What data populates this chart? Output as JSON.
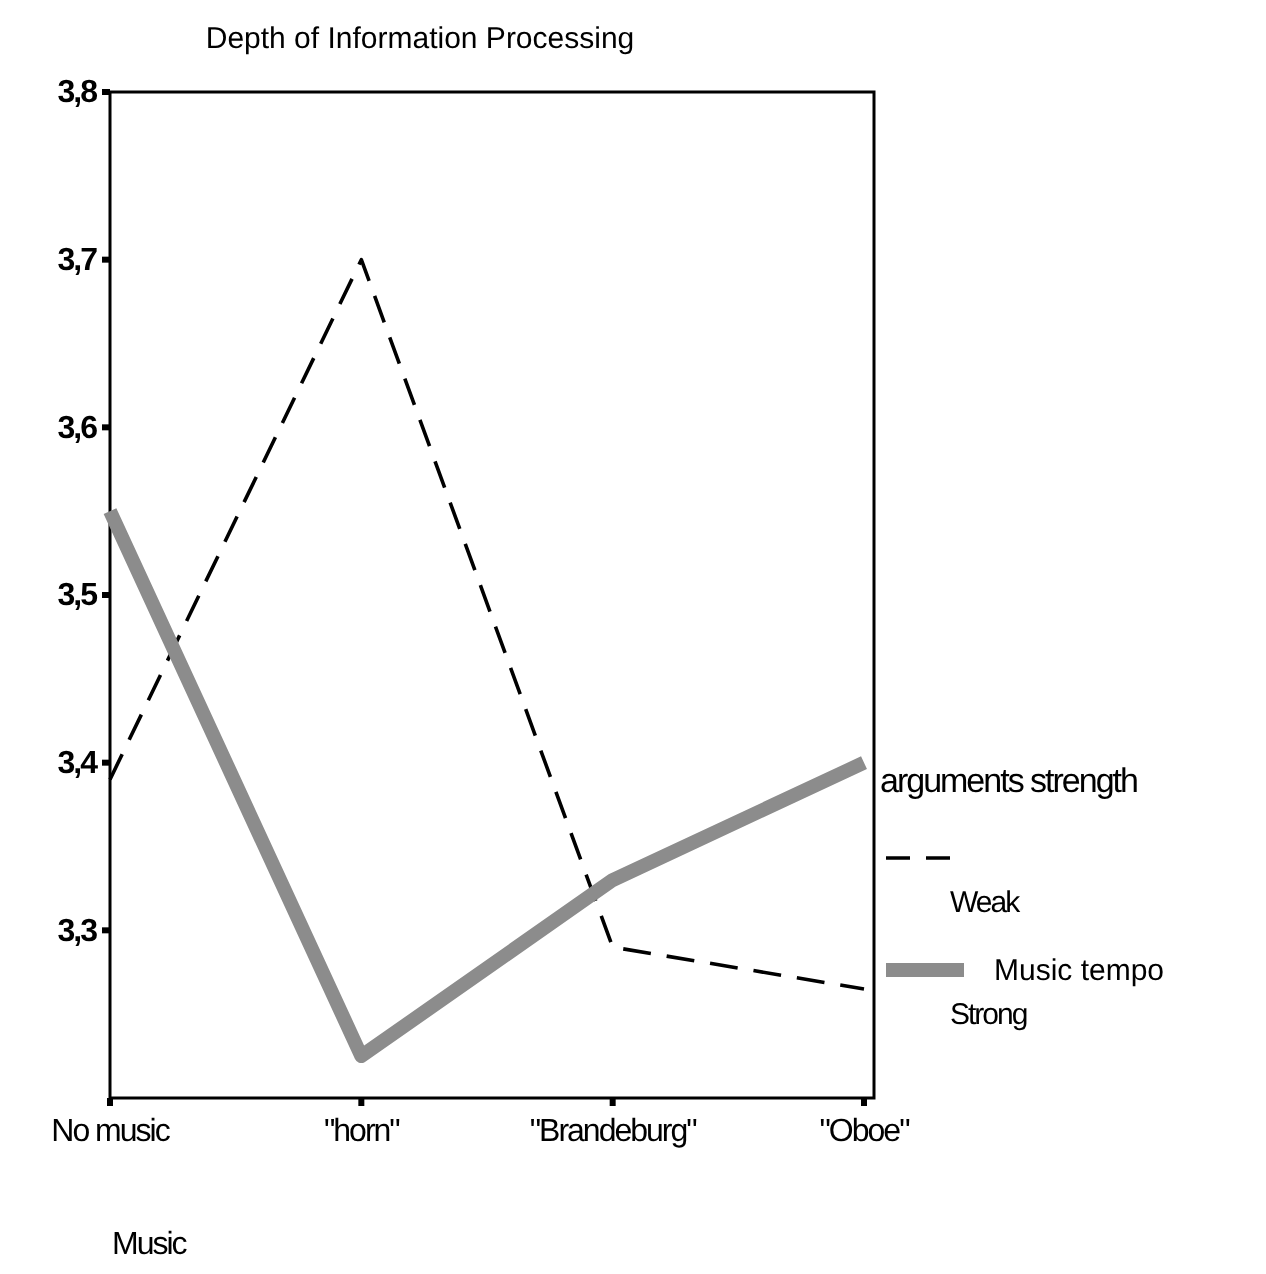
{
  "chart_data": {
    "type": "line",
    "title": "Depth of Information Processing",
    "xlabel": "Music",
    "legend_title": "arguments strength",
    "categories": [
      "No music",
      "\"horn\"",
      "\"Brandeburg\"",
      "\"Oboe\""
    ],
    "series": [
      {
        "name": "Weak",
        "color": "#000000",
        "line_style": "dashed",
        "values": [
          3.39,
          3.7,
          3.29,
          3.265
        ]
      },
      {
        "name": "Strong",
        "color": "#8c8c8c",
        "line_style": "solid",
        "values": [
          3.55,
          3.225,
          3.33,
          3.4
        ]
      }
    ],
    "annotations": [
      "Music tempo"
    ],
    "ylim": [
      3.2,
      3.8
    ],
    "yticks": [
      {
        "value": 3.3,
        "label": "3,3"
      },
      {
        "value": 3.4,
        "label": "3,4"
      },
      {
        "value": 3.5,
        "label": "3,5"
      },
      {
        "value": 3.6,
        "label": "3,6"
      },
      {
        "value": 3.7,
        "label": "3,7"
      },
      {
        "value": 3.8,
        "label": "3,8"
      }
    ],
    "grid": false,
    "legend": "right",
    "marker": "none"
  }
}
